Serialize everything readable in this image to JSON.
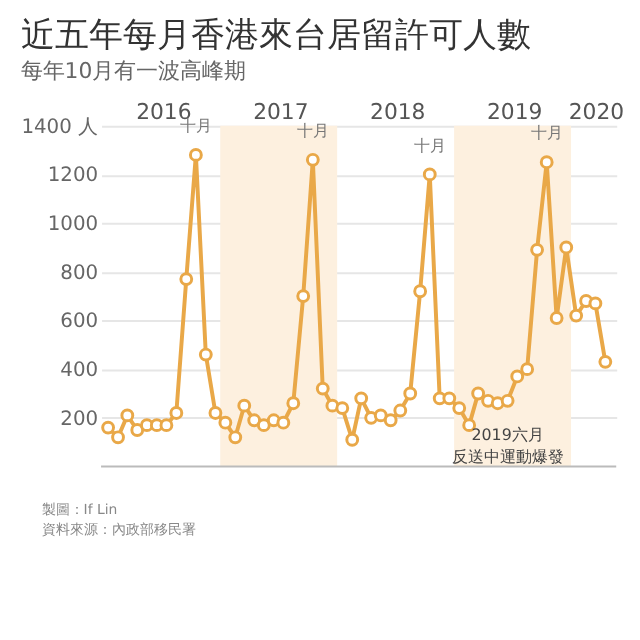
{
  "chart_data": {
    "type": "line",
    "title": "近五年每月香港來台居留許可人數",
    "subtitle": "每年10月有一波高峰期",
    "x": [
      "2016-01",
      "2016-02",
      "2016-03",
      "2016-04",
      "2016-05",
      "2016-06",
      "2016-07",
      "2016-08",
      "2016-09",
      "2016-10",
      "2016-11",
      "2016-12",
      "2017-01",
      "2017-02",
      "2017-03",
      "2017-04",
      "2017-05",
      "2017-06",
      "2017-07",
      "2017-08",
      "2017-09",
      "2017-10",
      "2017-11",
      "2017-12",
      "2018-01",
      "2018-02",
      "2018-03",
      "2018-04",
      "2018-05",
      "2018-06",
      "2018-07",
      "2018-08",
      "2018-09",
      "2018-10",
      "2018-11",
      "2018-12",
      "2019-01",
      "2019-02",
      "2019-03",
      "2019-04",
      "2019-05",
      "2019-06",
      "2019-07",
      "2019-08",
      "2019-09",
      "2019-10",
      "2019-11",
      "2019-12",
      "2020-01",
      "2020-02",
      "2020-03",
      "2020-04"
    ],
    "series": [
      {
        "color": "#e9a848",
        "values": [
          160,
          120,
          210,
          150,
          170,
          170,
          170,
          220,
          770,
          1280,
          460,
          220,
          180,
          120,
          250,
          190,
          170,
          190,
          180,
          260,
          700,
          1260,
          320,
          250,
          240,
          110,
          280,
          200,
          210,
          190,
          230,
          300,
          720,
          1200,
          280,
          280,
          240,
          170,
          300,
          270,
          260,
          270,
          370,
          400,
          890,
          1250,
          610,
          900,
          620,
          680,
          670,
          430
        ]
      }
    ],
    "xlim": [
      "2015-12-10",
      "2020-05-05"
    ],
    "xticks": [
      {
        "value": "2016-06-20",
        "label": "2016"
      },
      {
        "value": "2017-06-20",
        "label": "2017"
      },
      {
        "value": "2018-06-20",
        "label": "2018"
      },
      {
        "value": "2019-06-20",
        "label": "2019"
      },
      {
        "value": "2020-03-01",
        "label": "2020"
      }
    ],
    "ylim": [
      0,
      1400
    ],
    "yticks": [
      200,
      400,
      600,
      800,
      1000,
      1200,
      {
        "value": 1400,
        "label": "1400 人"
      }
    ],
    "bands": [
      {
        "axis": "x",
        "from": "2016-12-16",
        "to": "2017-12-16",
        "color": "#fdf0df"
      },
      {
        "axis": "x",
        "from": "2018-12-16",
        "to": "2019-12-16",
        "color": "#fdf0df"
      }
    ],
    "grid": "y",
    "marker": "circle",
    "line_style": "solid",
    "annotations": [
      {
        "text": "十月",
        "x": "2016-10",
        "y": 1280
      },
      {
        "text": "十月",
        "x": "2017-10",
        "y": 1260
      },
      {
        "text": "十月",
        "x": "2018-10",
        "y": 1200
      },
      {
        "text": "十月",
        "x": "2019-10",
        "y": 1250
      },
      {
        "text": "2019六月",
        "x": "2019-06",
        "y": 270
      },
      {
        "text": "反送中運動爆發",
        "x": "2019-06",
        "y": 270
      },
      "製圖：If Lin",
      "資料來源：內政部移民署"
    ]
  }
}
